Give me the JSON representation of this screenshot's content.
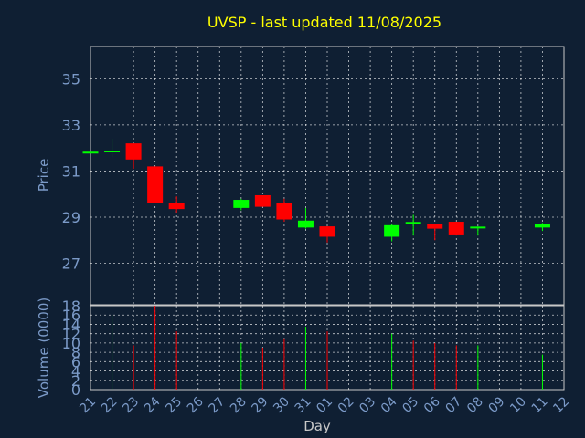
{
  "chart_data": [
    {
      "type": "candlestick",
      "title": "UVSP - last updated 11/08/2025",
      "ylabel": "Price",
      "ylim": [
        25.2,
        36.4
      ],
      "yticks": [
        "27",
        "29",
        "31",
        "33",
        "35"
      ],
      "grid": true,
      "colors": {
        "up": "#00ff00",
        "down": "#ff0000",
        "title": "#ffff00",
        "axis_text": "#7b9ac8",
        "background": "#0f1f33",
        "grid": "#ffffff"
      },
      "candles": [
        {
          "day": "21",
          "open": 31.8,
          "high": 31.8,
          "low": 31.8,
          "close": 31.8
        },
        {
          "day": "22",
          "open": 31.85,
          "high": 32.4,
          "low": 31.6,
          "close": 31.85
        },
        {
          "day": "23",
          "open": 32.2,
          "high": 32.2,
          "low": 31.1,
          "close": 31.5
        },
        {
          "day": "24",
          "open": 31.2,
          "high": 31.2,
          "low": 29.6,
          "close": 29.6
        },
        {
          "day": "25",
          "open": 29.6,
          "high": 29.9,
          "low": 29.2,
          "close": 29.35
        },
        {
          "day": "28",
          "open": 29.4,
          "high": 29.8,
          "low": 29.3,
          "close": 29.75
        },
        {
          "day": "29",
          "open": 29.95,
          "high": 29.95,
          "low": 29.45,
          "close": 29.45
        },
        {
          "day": "30",
          "open": 29.6,
          "high": 29.8,
          "low": 28.8,
          "close": 28.9
        },
        {
          "day": "31",
          "open": 28.55,
          "high": 29.4,
          "low": 28.5,
          "close": 28.85
        },
        {
          "day": "01",
          "open": 28.6,
          "high": 28.6,
          "low": 27.9,
          "close": 28.15
        },
        {
          "day": "04",
          "open": 28.15,
          "high": 28.7,
          "low": 27.95,
          "close": 28.65
        },
        {
          "day": "05",
          "open": 28.75,
          "high": 29.1,
          "low": 28.2,
          "close": 28.75
        },
        {
          "day": "06",
          "open": 28.7,
          "high": 28.7,
          "low": 28.0,
          "close": 28.5
        },
        {
          "day": "07",
          "open": 28.8,
          "high": 28.8,
          "low": 28.2,
          "close": 28.25
        },
        {
          "day": "08",
          "open": 28.5,
          "high": 28.6,
          "low": 28.2,
          "close": 28.55
        },
        {
          "day": "11",
          "open": 28.55,
          "high": 28.75,
          "low": 28.4,
          "close": 28.7
        }
      ]
    },
    {
      "type": "bar",
      "ylabel": "Volume (0000)",
      "xlabel": "Day",
      "ylim": [
        0,
        18
      ],
      "yticks": [
        "0",
        "2",
        "4",
        "6",
        "8",
        "10",
        "12",
        "14",
        "16",
        "18"
      ],
      "categories": [
        "21",
        "22",
        "23",
        "24",
        "25",
        "26",
        "27",
        "28",
        "29",
        "30",
        "31",
        "01",
        "02",
        "03",
        "04",
        "05",
        "06",
        "07",
        "08",
        "09",
        "10",
        "11",
        "12"
      ],
      "volumes": [
        {
          "day": "22",
          "value": 16,
          "direction": "up"
        },
        {
          "day": "23",
          "value": 9.5,
          "direction": "down"
        },
        {
          "day": "24",
          "value": 18,
          "direction": "down"
        },
        {
          "day": "25",
          "value": 12.5,
          "direction": "down"
        },
        {
          "day": "28",
          "value": 10,
          "direction": "up"
        },
        {
          "day": "29",
          "value": 9,
          "direction": "down"
        },
        {
          "day": "30",
          "value": 11,
          "direction": "down"
        },
        {
          "day": "31",
          "value": 13.5,
          "direction": "up"
        },
        {
          "day": "01",
          "value": 12.5,
          "direction": "down"
        },
        {
          "day": "04",
          "value": 12,
          "direction": "up"
        },
        {
          "day": "05",
          "value": 10.5,
          "direction": "down"
        },
        {
          "day": "06",
          "value": 10,
          "direction": "down"
        },
        {
          "day": "07",
          "value": 9.5,
          "direction": "down"
        },
        {
          "day": "08",
          "value": 9.5,
          "direction": "up"
        },
        {
          "day": "11",
          "value": 7.5,
          "direction": "up"
        }
      ]
    }
  ]
}
